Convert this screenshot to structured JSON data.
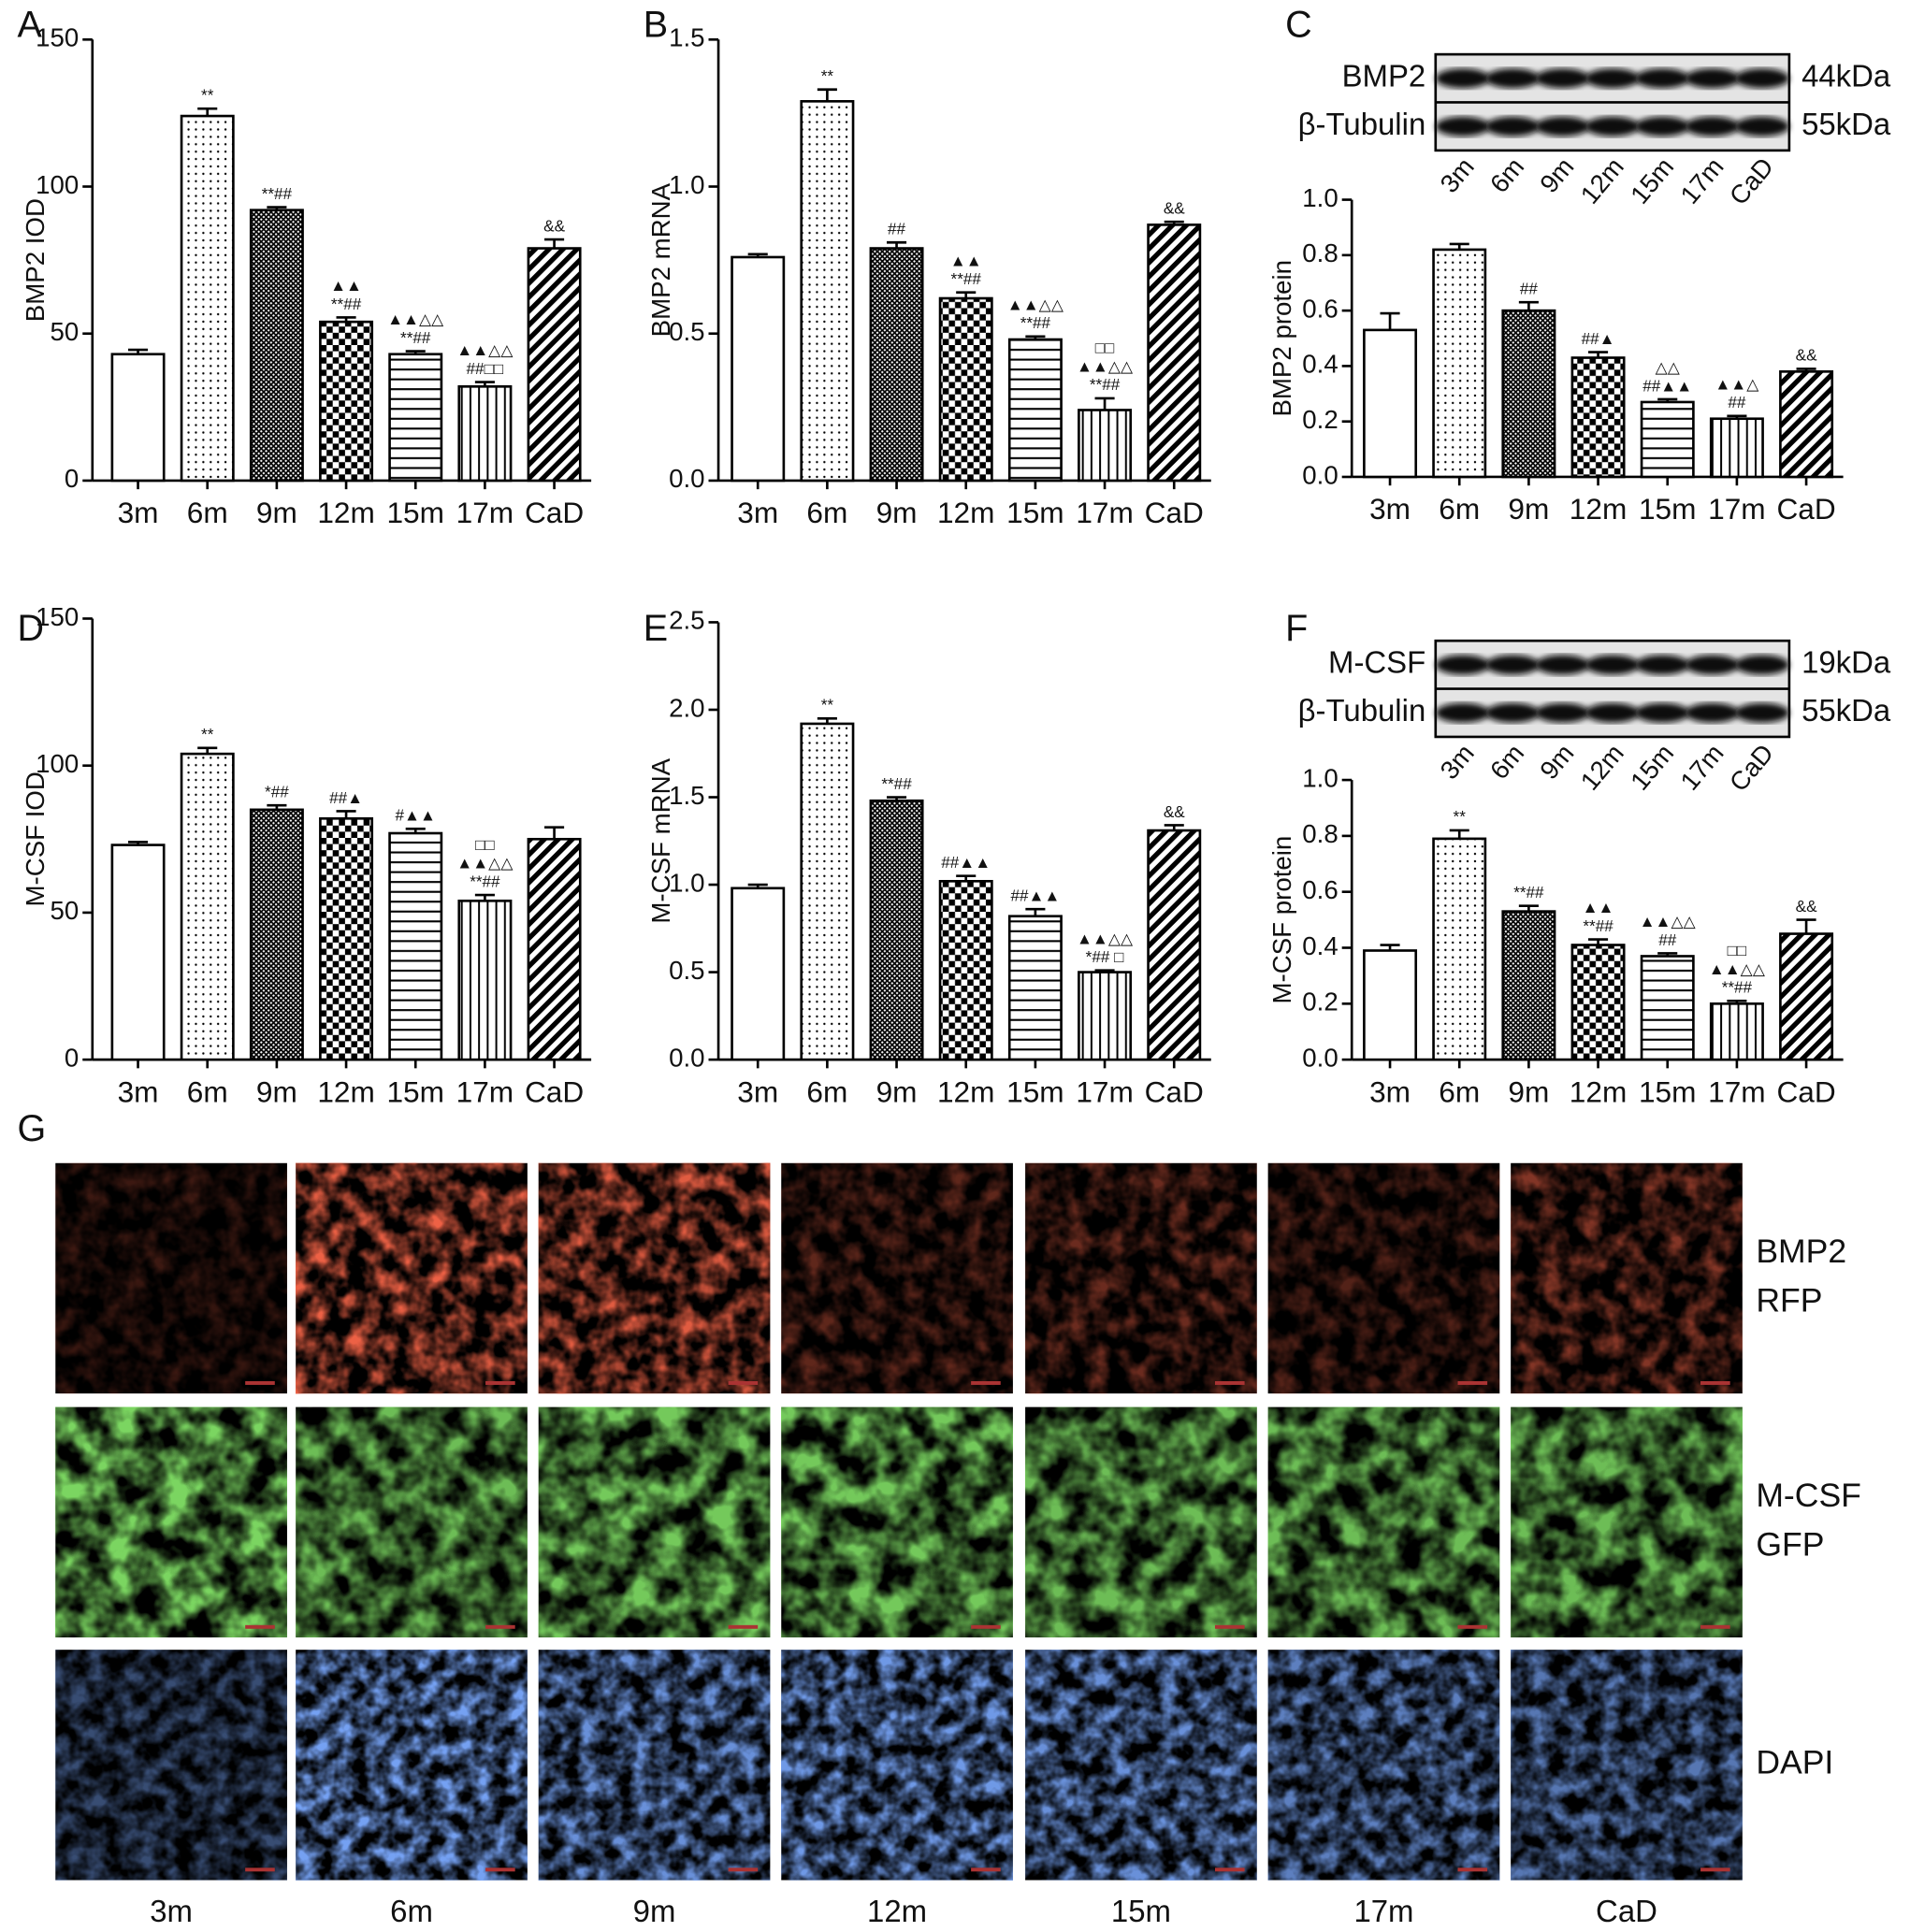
{
  "chart_data": [
    {
      "type": "bar",
      "panel": "A",
      "ylabel": "BMP2 IOD",
      "categories": [
        "3m",
        "6m",
        "9m",
        "12m",
        "15m",
        "17m",
        "CaD"
      ],
      "values": [
        43,
        124,
        92,
        54,
        43,
        32,
        79
      ],
      "errors": [
        1.5,
        2.5,
        1,
        1.5,
        1,
        1.5,
        3
      ],
      "annotations": [
        null,
        [
          "**"
        ],
        [
          "**##"
        ],
        [
          "▲▲",
          "**##"
        ],
        [
          "▲▲△△",
          "**##"
        ],
        [
          "▲▲△△",
          "##□□"
        ],
        [
          "&&"
        ]
      ],
      "ylim": [
        0,
        150
      ],
      "yticks": [
        0,
        50,
        100,
        150
      ]
    },
    {
      "type": "bar",
      "panel": "B",
      "ylabel": "BMP2 mRNA",
      "categories": [
        "3m",
        "6m",
        "9m",
        "12m",
        "15m",
        "17m",
        "CaD"
      ],
      "values": [
        0.76,
        1.29,
        0.79,
        0.62,
        0.48,
        0.24,
        0.87
      ],
      "errors": [
        0.01,
        0.04,
        0.02,
        0.02,
        0.01,
        0.04,
        0.01
      ],
      "annotations": [
        null,
        [
          "**"
        ],
        [
          "##"
        ],
        [
          "▲▲",
          "**##"
        ],
        [
          "▲▲△△",
          "**##"
        ],
        [
          "□□",
          "▲▲△△",
          "**##"
        ],
        [
          "&&"
        ]
      ],
      "ylim": [
        0,
        1.5
      ],
      "yticks": [
        {
          "value": 0,
          "label": "0.0"
        },
        0.5,
        {
          "value": 1,
          "label": "1.0"
        },
        1.5
      ]
    },
    {
      "type": "bar",
      "panel": "C",
      "ylabel": "BMP2 protein",
      "categories": [
        "3m",
        "6m",
        "9m",
        "12m",
        "15m",
        "17m",
        "CaD"
      ],
      "values": [
        0.53,
        0.82,
        0.6,
        0.43,
        0.27,
        0.21,
        0.38
      ],
      "errors": [
        0.06,
        0.02,
        0.03,
        0.02,
        0.01,
        0.01,
        0.01
      ],
      "annotations": [
        null,
        null,
        [
          "##"
        ],
        [
          "##▲"
        ],
        [
          "△△",
          "##▲▲"
        ],
        [
          "▲▲△",
          "##"
        ],
        [
          "&&"
        ]
      ],
      "ylim": [
        0,
        1
      ],
      "yticks": [
        {
          "value": 0,
          "label": "0.0"
        },
        0.2,
        0.4,
        0.6,
        0.8,
        {
          "value": 1,
          "label": "1.0"
        }
      ],
      "blot": {
        "bands": [
          {
            "label": "BMP2",
            "size": "44kDa"
          },
          {
            "label": "β-Tubulin",
            "size": "55kDa"
          }
        ],
        "lanes": [
          "3m",
          "6m",
          "9m",
          "12m",
          "15m",
          "17m",
          "CaD"
        ]
      }
    },
    {
      "type": "bar",
      "panel": "D",
      "ylabel": "M-CSF IOD",
      "categories": [
        "3m",
        "6m",
        "9m",
        "12m",
        "15m",
        "17m",
        "CaD"
      ],
      "values": [
        73,
        104,
        85,
        82,
        77,
        54,
        75
      ],
      "errors": [
        1,
        2,
        1.5,
        2.5,
        1.5,
        2,
        4
      ],
      "annotations": [
        null,
        [
          "**"
        ],
        [
          "*##"
        ],
        [
          "##▲"
        ],
        [
          "#▲▲"
        ],
        [
          "□□",
          "▲▲△△",
          "**##"
        ],
        null
      ],
      "ylim": [
        0,
        150
      ],
      "yticks": [
        0,
        50,
        100,
        150
      ]
    },
    {
      "type": "bar",
      "panel": "E",
      "ylabel": "M-CSF mRNA",
      "categories": [
        "3m",
        "6m",
        "9m",
        "12m",
        "15m",
        "17m",
        "CaD"
      ],
      "values": [
        0.98,
        1.92,
        1.48,
        1.02,
        0.82,
        0.5,
        1.31
      ],
      "errors": [
        0.02,
        0.03,
        0.02,
        0.03,
        0.04,
        0.01,
        0.03
      ],
      "annotations": [
        null,
        [
          "**"
        ],
        [
          "**##"
        ],
        [
          "##▲▲"
        ],
        [
          "##▲▲"
        ],
        [
          "▲▲△△",
          "*## □"
        ],
        [
          "&&"
        ]
      ],
      "ylim": [
        0,
        2.5
      ],
      "yticks": [
        {
          "value": 0,
          "label": "0.0"
        },
        0.5,
        {
          "value": 1,
          "label": "1.0"
        },
        1.5,
        {
          "value": 2,
          "label": "2.0"
        },
        2.5
      ]
    },
    {
      "type": "bar",
      "panel": "F",
      "ylabel": "M-CSF protein",
      "categories": [
        "3m",
        "6m",
        "9m",
        "12m",
        "15m",
        "17m",
        "CaD"
      ],
      "values": [
        0.39,
        0.79,
        0.53,
        0.41,
        0.37,
        0.2,
        0.45
      ],
      "errors": [
        0.02,
        0.03,
        0.02,
        0.02,
        0.01,
        0.01,
        0.05
      ],
      "annotations": [
        null,
        [
          "**"
        ],
        [
          "**##"
        ],
        [
          "▲▲",
          "**##"
        ],
        [
          "▲▲△△",
          "##"
        ],
        [
          "□□",
          "▲▲△△",
          "**##"
        ],
        [
          "&&"
        ]
      ],
      "ylim": [
        0,
        1
      ],
      "yticks": [
        {
          "value": 0,
          "label": "0.0"
        },
        0.2,
        0.4,
        0.6,
        0.8,
        {
          "value": 1,
          "label": "1.0"
        }
      ],
      "blot": {
        "bands": [
          {
            "label": "M-CSF",
            "size": "19kDa"
          },
          {
            "label": "β-Tubulin",
            "size": "55kDa"
          }
        ],
        "lanes": [
          "3m",
          "6m",
          "9m",
          "12m",
          "15m",
          "17m",
          "CaD"
        ]
      }
    }
  ],
  "panel_g": {
    "panel": "G",
    "rows": [
      [
        "BMP2",
        "RFP"
      ],
      [
        "M-CSF",
        "GFP"
      ],
      [
        "DAPI"
      ]
    ],
    "columns": [
      "3m",
      "6m",
      "9m",
      "12m",
      "15m",
      "17m",
      "CaD"
    ]
  }
}
